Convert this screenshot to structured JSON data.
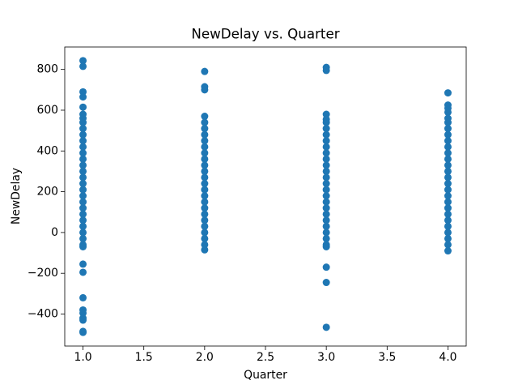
{
  "chart_data": {
    "type": "scatter",
    "title": "NewDelay vs. Quarter",
    "x_label": "Quarter",
    "y_label": "NewDelay",
    "color": "#1f77b4",
    "x": [
      1,
      1,
      1,
      1,
      1,
      1,
      1,
      1,
      1,
      1,
      1,
      1,
      1,
      1,
      1,
      1,
      1,
      1,
      1,
      1,
      1,
      1,
      1,
      1,
      1,
      1,
      1,
      1,
      1,
      1,
      1,
      1,
      1,
      1,
      1,
      1,
      1,
      1,
      2,
      2,
      2,
      2,
      2,
      2,
      2,
      2,
      2,
      2,
      2,
      2,
      2,
      2,
      2,
      2,
      2,
      2,
      2,
      2,
      2,
      2,
      2,
      2,
      2,
      2,
      3,
      3,
      3,
      3,
      3,
      3,
      3,
      3,
      3,
      3,
      3,
      3,
      3,
      3,
      3,
      3,
      3,
      3,
      3,
      3,
      3,
      3,
      3,
      3,
      3,
      3,
      3,
      3,
      3,
      4,
      4,
      4,
      4,
      4,
      4,
      4,
      4,
      4,
      4,
      4,
      4,
      4,
      4,
      4,
      4,
      4,
      4,
      4,
      4,
      4,
      4,
      4,
      4,
      4,
      4,
      4
    ],
    "y": [
      843,
      815,
      690,
      665,
      615,
      580,
      560,
      -60,
      -30,
      0,
      30,
      60,
      90,
      120,
      150,
      180,
      210,
      240,
      270,
      300,
      330,
      360,
      390,
      420,
      450,
      480,
      510,
      540,
      -70,
      -155,
      -195,
      -320,
      -380,
      -395,
      -420,
      -430,
      -485,
      -490,
      790,
      715,
      700,
      570,
      -60,
      -30,
      0,
      30,
      60,
      90,
      120,
      150,
      180,
      210,
      240,
      270,
      300,
      330,
      360,
      390,
      420,
      450,
      480,
      510,
      540,
      -85,
      810,
      795,
      580,
      555,
      -60,
      -30,
      0,
      30,
      60,
      90,
      120,
      150,
      180,
      210,
      240,
      270,
      300,
      330,
      360,
      390,
      420,
      450,
      480,
      510,
      540,
      -70,
      -170,
      -245,
      -465,
      685,
      625,
      610,
      590,
      560,
      -60,
      -30,
      0,
      30,
      60,
      90,
      120,
      150,
      180,
      210,
      240,
      270,
      300,
      330,
      360,
      390,
      420,
      450,
      480,
      510,
      540,
      -90
    ],
    "xlim": [
      0.85,
      4.15
    ],
    "ylim": [
      -557,
      910
    ],
    "xticks": [
      {
        "value": 1,
        "label": "1.0"
      },
      {
        "value": 1.5,
        "label": "1.5"
      },
      {
        "value": 2,
        "label": "2.0"
      },
      {
        "value": 2.5,
        "label": "2.5"
      },
      {
        "value": 3,
        "label": "3.0"
      },
      {
        "value": 3.5,
        "label": "3.5"
      },
      {
        "value": 4,
        "label": "4.0"
      }
    ],
    "yticks": [
      {
        "value": -400,
        "label": "−400"
      },
      {
        "value": -200,
        "label": "−200"
      },
      0,
      200,
      400,
      600,
      800
    ]
  }
}
